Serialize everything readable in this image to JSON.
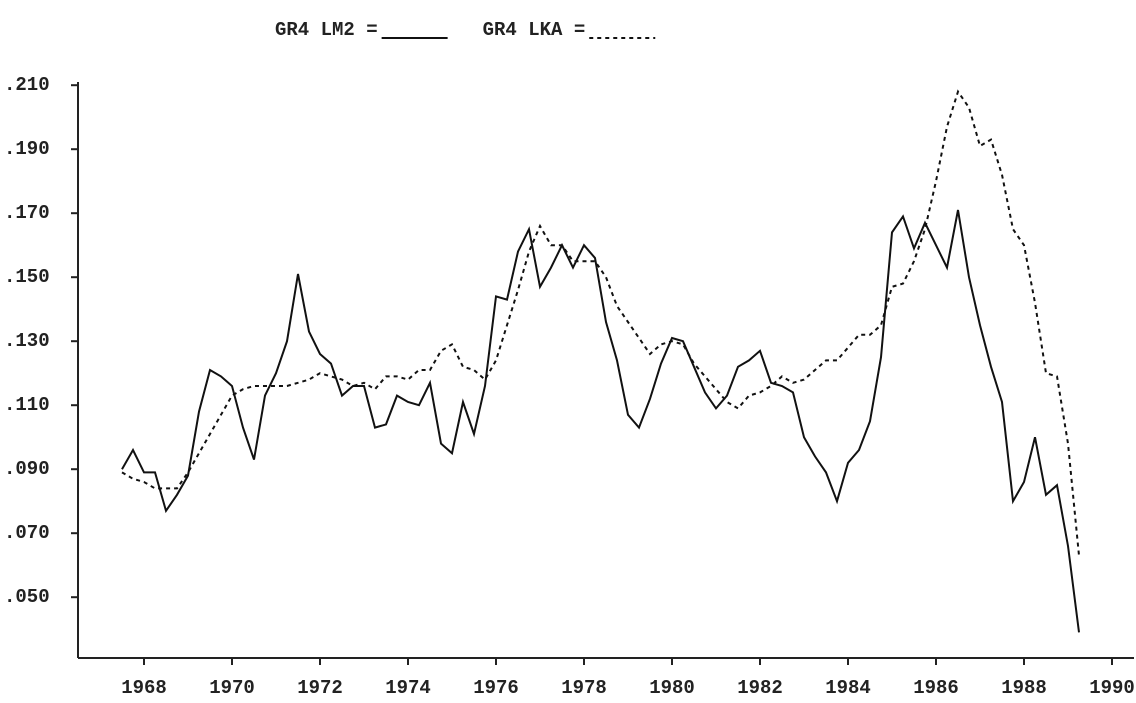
{
  "chart_data": {
    "type": "line",
    "x": [
      1967.5,
      1967.75,
      1968,
      1968.25,
      1968.5,
      1968.75,
      1969,
      1969.25,
      1969.5,
      1969.75,
      1970,
      1970.25,
      1970.5,
      1970.75,
      1971,
      1971.25,
      1971.5,
      1971.75,
      1972,
      1972.25,
      1972.5,
      1972.75,
      1973,
      1973.25,
      1973.5,
      1973.75,
      1974,
      1974.25,
      1974.5,
      1974.75,
      1975,
      1975.25,
      1975.5,
      1975.75,
      1976,
      1976.25,
      1976.5,
      1976.75,
      1977,
      1977.25,
      1977.5,
      1977.75,
      1978,
      1978.25,
      1978.5,
      1978.75,
      1979,
      1979.25,
      1979.5,
      1979.75,
      1980,
      1980.25,
      1980.5,
      1980.75,
      1981,
      1981.25,
      1981.5,
      1981.75,
      1982,
      1982.25,
      1982.5,
      1982.75,
      1983,
      1983.25,
      1983.5,
      1983.75,
      1984,
      1984.25,
      1984.5,
      1984.75,
      1985,
      1985.25,
      1985.5,
      1985.75,
      1986,
      1986.25,
      1986.5,
      1986.75,
      1987,
      1987.25,
      1987.5,
      1987.75,
      1988,
      1988.25,
      1988.5,
      1988.75,
      1989,
      1989.25
    ],
    "series": [
      {
        "name": "GR4 LM2 =",
        "color": "#111111",
        "dash": "solid",
        "values": [
          0.09,
          0.096,
          0.089,
          0.089,
          0.077,
          0.082,
          0.088,
          0.108,
          0.121,
          0.119,
          0.116,
          0.103,
          0.093,
          0.113,
          0.12,
          0.13,
          0.151,
          0.133,
          0.126,
          0.123,
          0.113,
          0.116,
          0.116,
          0.103,
          0.104,
          0.113,
          0.111,
          0.11,
          0.117,
          0.098,
          0.095,
          0.111,
          0.101,
          0.116,
          0.144,
          0.143,
          0.158,
          0.165,
          0.147,
          0.153,
          0.16,
          0.153,
          0.16,
          0.156,
          0.136,
          0.124,
          0.107,
          0.103,
          0.112,
          0.123,
          0.131,
          0.13,
          0.122,
          0.114,
          0.109,
          0.113,
          0.122,
          0.124,
          0.127,
          0.117,
          0.116,
          0.114,
          0.1,
          0.094,
          0.089,
          0.08,
          0.092,
          0.096,
          0.105,
          0.125,
          0.164,
          0.169,
          0.159,
          0.167,
          0.16,
          0.153,
          0.171,
          0.15,
          0.135,
          0.122,
          0.111,
          0.08,
          0.086,
          0.1,
          0.082,
          0.085,
          0.066,
          0.039
        ]
      },
      {
        "name": "GR4 LKA =",
        "color": "#111111",
        "dash": "dashed",
        "values": [
          0.089,
          0.087,
          0.086,
          0.084,
          0.084,
          0.084,
          0.089,
          0.095,
          0.101,
          0.107,
          0.113,
          0.115,
          0.116,
          0.116,
          0.116,
          0.116,
          0.117,
          0.118,
          0.12,
          0.119,
          0.118,
          0.116,
          0.117,
          0.115,
          0.119,
          0.119,
          0.118,
          0.121,
          0.121,
          0.127,
          0.129,
          0.122,
          0.121,
          0.118,
          0.124,
          0.135,
          0.146,
          0.158,
          0.166,
          0.16,
          0.16,
          0.155,
          0.155,
          0.155,
          0.15,
          0.141,
          0.136,
          0.131,
          0.126,
          0.129,
          0.13,
          0.129,
          0.123,
          0.119,
          0.115,
          0.111,
          0.109,
          0.113,
          0.114,
          0.116,
          0.119,
          0.117,
          0.118,
          0.121,
          0.124,
          0.124,
          0.128,
          0.132,
          0.132,
          0.135,
          0.147,
          0.148,
          0.155,
          0.165,
          0.18,
          0.197,
          0.208,
          0.203,
          0.191,
          0.193,
          0.182,
          0.165,
          0.16,
          0.142,
          0.12,
          0.119,
          0.098,
          0.063
        ]
      }
    ],
    "xlim": [
      1966.5,
      1990.5
    ],
    "xticks": [
      1968,
      1970,
      1972,
      1974,
      1976,
      1978,
      1980,
      1982,
      1984,
      1986,
      1988,
      1990
    ],
    "ylim": [
      0.031,
      0.211
    ],
    "yticks": [
      {
        "value": 0.05,
        "label": ".050"
      },
      {
        "value": 0.07,
        "label": ".070"
      },
      {
        "value": 0.09,
        "label": ".090"
      },
      {
        "value": 0.11,
        "label": ".110"
      },
      {
        "value": 0.13,
        "label": ".130"
      },
      {
        "value": 0.15,
        "label": ".150"
      },
      {
        "value": 0.17,
        "label": ".170"
      },
      {
        "value": 0.19,
        "label": ".190"
      },
      {
        "value": 0.21,
        "label": ".210"
      }
    ],
    "grid": false
  }
}
